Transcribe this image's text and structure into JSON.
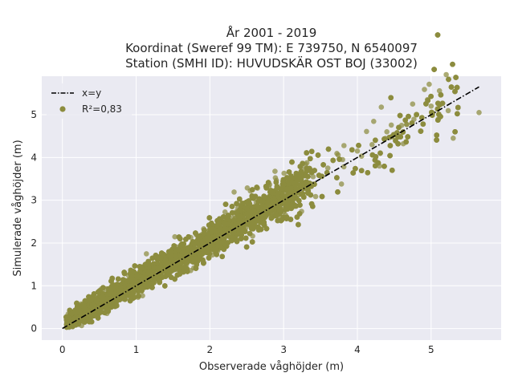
{
  "chart_data": {
    "type": "scatter",
    "title_lines": [
      "År 2001 - 2019",
      "Koordinat (Sweref 99 TM): E 739750, N 6540097",
      "Station (SMHI ID): HUVUDSKÄR OST BOJ (33002)"
    ],
    "xlabel": "Observerade våghöjder (m)",
    "ylabel": "Simulerade våghöjder (m)",
    "xlim": [
      -0.28,
      5.95
    ],
    "ylim": [
      -0.27,
      5.9
    ],
    "xticks": [
      0,
      1,
      2,
      3,
      4,
      5
    ],
    "yticks": [
      0,
      1,
      2,
      3,
      4,
      5
    ],
    "grid": true,
    "legend_position": "top-left",
    "legend": [
      {
        "label": "x=y",
        "style": "dashdot-line"
      },
      {
        "label": "R²=0,83",
        "style": "marker"
      }
    ],
    "reference_line": {
      "x": [
        0,
        5.65
      ],
      "y": [
        0,
        5.65
      ]
    },
    "point_cloud": {
      "trend_slope": 1.0,
      "trend_intercept": 0.08,
      "x_range": [
        0.05,
        5.65
      ],
      "approx_count": 9000
    },
    "sample_points": [
      [
        0.1,
        0.15
      ],
      [
        0.2,
        0.25
      ],
      [
        0.3,
        0.35
      ],
      [
        0.4,
        0.5
      ],
      [
        0.5,
        0.55
      ],
      [
        0.6,
        0.7
      ],
      [
        0.7,
        0.8
      ],
      [
        0.8,
        0.85
      ],
      [
        0.9,
        1.0
      ],
      [
        1.0,
        1.1
      ],
      [
        1.1,
        1.2
      ],
      [
        1.2,
        1.3
      ],
      [
        1.3,
        1.4
      ],
      [
        1.4,
        1.5
      ],
      [
        1.5,
        1.6
      ],
      [
        1.6,
        1.7
      ],
      [
        1.7,
        1.8
      ],
      [
        1.8,
        1.9
      ],
      [
        2.0,
        2.1
      ],
      [
        2.2,
        2.35
      ],
      [
        2.4,
        2.5
      ],
      [
        2.6,
        2.75
      ],
      [
        2.8,
        2.9
      ],
      [
        3.0,
        3.15
      ],
      [
        3.2,
        3.35
      ],
      [
        3.4,
        3.55
      ],
      [
        3.6,
        3.75
      ],
      [
        3.8,
        3.95
      ],
      [
        4.0,
        4.15
      ],
      [
        4.2,
        4.3
      ],
      [
        4.4,
        4.6
      ],
      [
        4.6,
        4.75
      ],
      [
        4.8,
        5.0
      ],
      [
        5.0,
        5.2
      ],
      [
        5.3,
        4.45
      ],
      [
        5.65,
        5.05
      ],
      [
        4.95,
        5.35
      ],
      [
        4.75,
        5.25
      ],
      [
        4.3,
        3.8
      ],
      [
        5.1,
        4.9
      ]
    ],
    "colors": {
      "background": "#ffffff",
      "plot_bg": "#eaeaf2",
      "grid": "#ffffff",
      "points": "#8c8c3e",
      "reference_line": "#000000"
    }
  }
}
